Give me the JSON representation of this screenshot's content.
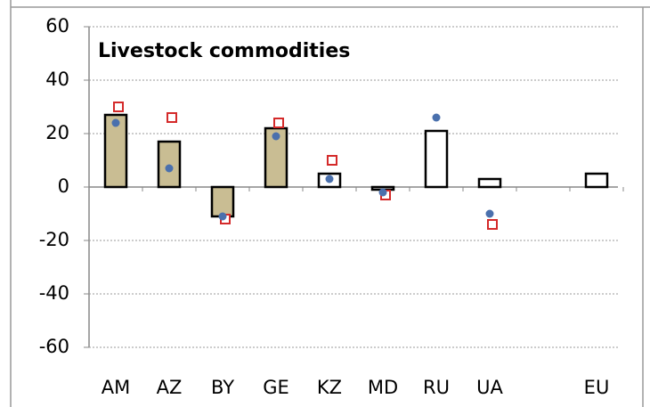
{
  "chart_data": {
    "type": "bar",
    "title": "Livestock commodities",
    "categories": [
      "AM",
      "AZ",
      "BY",
      "GE",
      "KZ",
      "MD",
      "RU",
      "UA",
      null,
      "EU"
    ],
    "values": [
      27,
      17,
      -11,
      22,
      5,
      -1,
      21,
      3,
      null,
      5
    ],
    "bar_colors": [
      "#c9bd93",
      "#c9bd93",
      "#c9bd93",
      "#c9bd93",
      "#ffffff",
      "#ffffff",
      "#ffffff",
      "#ffffff",
      null,
      "#ffffff"
    ],
    "markers": [
      {
        "shape": "square",
        "color": "#d42a2a",
        "values": [
          30,
          26,
          -12,
          24,
          10,
          -3,
          null,
          -14,
          null,
          null
        ]
      },
      {
        "shape": "circle",
        "color": "#4a70ad",
        "values": [
          24,
          7,
          -11,
          19,
          3,
          -2,
          26,
          -10,
          null,
          null
        ]
      }
    ],
    "ylim": [
      -60,
      60
    ],
    "yticks": [
      -60,
      -40,
      -20,
      0,
      20,
      40,
      60
    ],
    "grid": true
  }
}
